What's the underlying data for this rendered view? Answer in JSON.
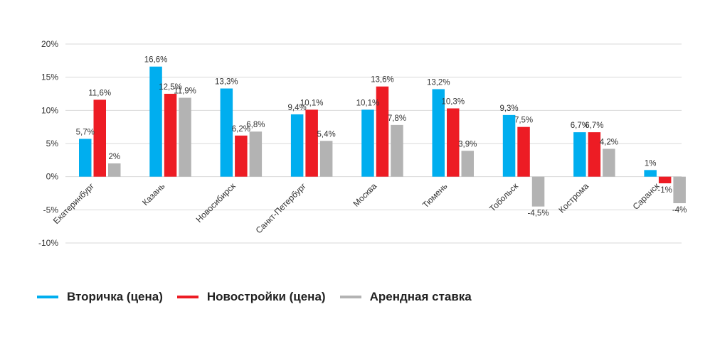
{
  "chart_data": {
    "type": "bar",
    "title": "",
    "xlabel": "",
    "ylabel": "",
    "ylim": [
      -10,
      20
    ],
    "yticks": [
      20,
      15,
      10,
      5,
      0,
      -5,
      -10
    ],
    "ytick_labels": [
      "20%",
      "15%",
      "10%",
      "5%",
      "0%",
      "-5%",
      "-10%"
    ],
    "grid": true,
    "legend_position": "bottom-left",
    "categories": [
      "Екатеринбург",
      "Казань",
      "Новосибирск",
      "Санкт-Петербург",
      "Москва",
      "Тюмень",
      "Тобольск",
      "Кострома",
      "Саранск"
    ],
    "series": [
      {
        "name": "Вторичка (цена)",
        "color": "#00AEEF",
        "values": [
          5.7,
          16.6,
          13.3,
          9.4,
          10.1,
          13.2,
          9.3,
          6.7,
          1
        ],
        "labels": [
          "5,7%",
          "16,6%",
          "13,3%",
          "9,4%",
          "10,1%",
          "13,2%",
          "9,3%",
          "6,7%",
          "1%"
        ]
      },
      {
        "name": "Новостройки (цена)",
        "color": "#ED1C24",
        "values": [
          11.6,
          12.5,
          6.2,
          10.1,
          13.6,
          10.3,
          7.5,
          6.7,
          -1
        ],
        "labels": [
          "11,6%",
          "12,5%",
          "6,2%",
          "10,1%",
          "13,6%",
          "10,3%",
          "7,5%",
          "6,7%",
          "-1%"
        ]
      },
      {
        "name": "Арендная ставка",
        "color": "#B3B3B3",
        "values": [
          2,
          11.9,
          6.8,
          5.4,
          7.8,
          3.9,
          -4.5,
          4.2,
          -4
        ],
        "labels": [
          "2%",
          "11,9%",
          "6,8%",
          "5,4%",
          "7,8%",
          "3,9%",
          "-4,5%",
          "4,2%",
          "-4%"
        ]
      }
    ]
  }
}
